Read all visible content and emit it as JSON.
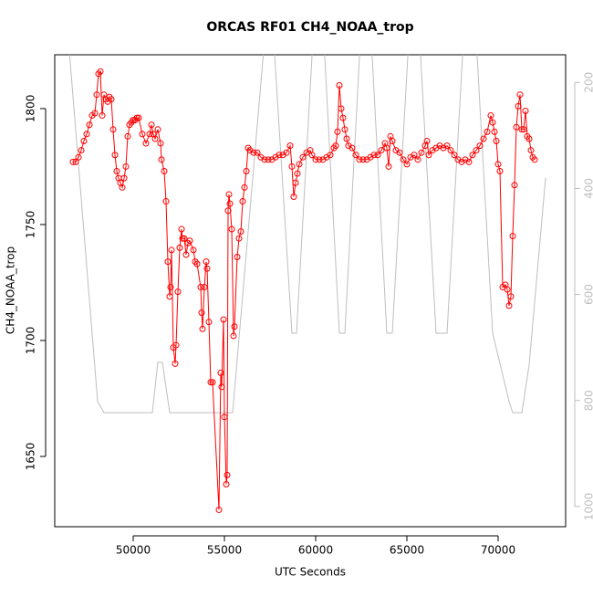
{
  "chart_data": {
    "type": "line",
    "title": "ORCAS RF01 CH4_NOAA_trop",
    "x_label": "UTC Seconds",
    "y_label": "CH4_NOAA_trop",
    "xlim": [
      45700,
      73700
    ],
    "ylim": [
      1619.7,
      1823.2
    ],
    "y2lim": [
      1038,
      148
    ],
    "xticks": [
      50000,
      55000,
      60000,
      65000,
      70000
    ],
    "yticks": [
      1650,
      1700,
      1750,
      1800
    ],
    "y2ticks": [
      200,
      400,
      600,
      800,
      1000
    ],
    "series": [
      {
        "color": "#ff0000",
        "marker": "circle",
        "x": [
          46700,
          46850,
          47000,
          47150,
          47300,
          47450,
          47600,
          47750,
          47900,
          48000,
          48100,
          48200,
          48300,
          48400,
          48500,
          48600,
          48700,
          48800,
          48900,
          49000,
          49100,
          49200,
          49300,
          49400,
          49500,
          49600,
          49700,
          49800,
          49900,
          50000,
          50100,
          50200,
          50300,
          50500,
          50700,
          50900,
          51000,
          51100,
          51200,
          51350,
          51500,
          51550,
          51700,
          51800,
          51900,
          52000,
          52050,
          52100,
          52200,
          52300,
          52350,
          52450,
          52550,
          52650,
          52700,
          52800,
          52900,
          53000,
          53100,
          53300,
          53400,
          53500,
          53700,
          53750,
          53800,
          53900,
          54000,
          54050,
          54150,
          54250,
          54350,
          54700,
          54800,
          54850,
          54950,
          55000,
          55100,
          55150,
          55200,
          55250,
          55300,
          55400,
          55500,
          55550,
          55700,
          55800,
          55900,
          56000,
          56100,
          56200,
          56300,
          56400,
          56600,
          56800,
          57000,
          57200,
          57400,
          57600,
          57800,
          58000,
          58200,
          58400,
          58600,
          58700,
          58800,
          58900,
          59000,
          59100,
          59300,
          59500,
          59700,
          59800,
          60000,
          60200,
          60400,
          60600,
          60800,
          61000,
          61100,
          61200,
          61300,
          61400,
          61500,
          61600,
          61700,
          61800,
          62000,
          62200,
          62400,
          62600,
          62800,
          63000,
          63200,
          63400,
          63600,
          63800,
          63900,
          64000,
          64100,
          64200,
          64400,
          64600,
          64800,
          65000,
          65200,
          65400,
          65600,
          65800,
          66000,
          66100,
          66200,
          66400,
          66600,
          66800,
          67000,
          67200,
          67400,
          67600,
          67800,
          68000,
          68200,
          68400,
          68600,
          68800,
          69000,
          69200,
          69400,
          69600,
          69700,
          69800,
          69900,
          70000,
          70100,
          70250,
          70400,
          70500,
          70600,
          70700,
          70800,
          70900,
          71000,
          71100,
          71200,
          71300,
          71400,
          71500,
          71600,
          71700,
          71800,
          71900,
          72000
        ],
        "values": [
          1777,
          1777,
          1779,
          1782,
          1786,
          1789,
          1793,
          1797,
          1798,
          1806,
          1815,
          1816,
          1797,
          1806,
          1804,
          1803,
          1805,
          1804,
          1791,
          1780,
          1773,
          1770,
          1768,
          1766,
          1770,
          1775,
          1788,
          1793,
          1794,
          1795,
          1795,
          1796,
          1796,
          1789,
          1785,
          1789,
          1793,
          1789,
          1787,
          1791,
          1785,
          1778,
          1773,
          1760,
          1734,
          1719,
          1723,
          1739,
          1697,
          1690,
          1698,
          1721,
          1740,
          1748,
          1744,
          1744,
          1737,
          1742,
          1743,
          1739,
          1734,
          1733,
          1723,
          1712,
          1705,
          1723,
          1734,
          1731,
          1708,
          1682,
          1682,
          1627,
          1686,
          1680,
          1709,
          1667,
          1638,
          1642,
          1756,
          1763,
          1759,
          1748,
          1702,
          1706,
          1736,
          1744,
          1747,
          1760,
          1766,
          1773,
          1783,
          1782,
          1781,
          1781,
          1779,
          1778,
          1778,
          1778,
          1779,
          1780,
          1780,
          1781,
          1784,
          1775,
          1762,
          1768,
          1772,
          1776,
          1779,
          1781,
          1782,
          1780,
          1778,
          1778,
          1778,
          1779,
          1780,
          1783,
          1784,
          1790,
          1810,
          1800,
          1796,
          1791,
          1787,
          1784,
          1783,
          1780,
          1778,
          1778,
          1778,
          1779,
          1780,
          1780,
          1782,
          1785,
          1783,
          1775,
          1788,
          1786,
          1782,
          1781,
          1778,
          1776,
          1779,
          1780,
          1778,
          1781,
          1784,
          1786,
          1780,
          1782,
          1783,
          1784,
          1783,
          1784,
          1782,
          1780,
          1778,
          1777,
          1778,
          1777,
          1780,
          1782,
          1784,
          1787,
          1790,
          1797,
          1794,
          1790,
          1786,
          1776,
          1773,
          1723,
          1724,
          1722,
          1715,
          1719,
          1745,
          1767,
          1792,
          1801,
          1806,
          1791,
          1791,
          1799,
          1788,
          1787,
          1782,
          1779,
          1778
        ]
      },
      {
        "color": "#bebebe",
        "axis": "y2",
        "x": [
          46450,
          48050,
          48400,
          51050,
          51350,
          51600,
          52000,
          55450,
          57200,
          57700,
          58700,
          58950,
          59850,
          60450,
          61300,
          61600,
          62450,
          63050,
          63900,
          64200,
          65100,
          65700,
          66600,
          67200,
          68100,
          68800,
          69700,
          70600,
          70800,
          71300,
          71700,
          72600
        ],
        "values": [
          120,
          802,
          823,
          823,
          728,
          728,
          823,
          823,
          120,
          120,
          673,
          673,
          120,
          120,
          673,
          673,
          120,
          120,
          673,
          673,
          120,
          120,
          673,
          673,
          120,
          120,
          673,
          802,
          823,
          823,
          733,
          380
        ]
      }
    ]
  }
}
